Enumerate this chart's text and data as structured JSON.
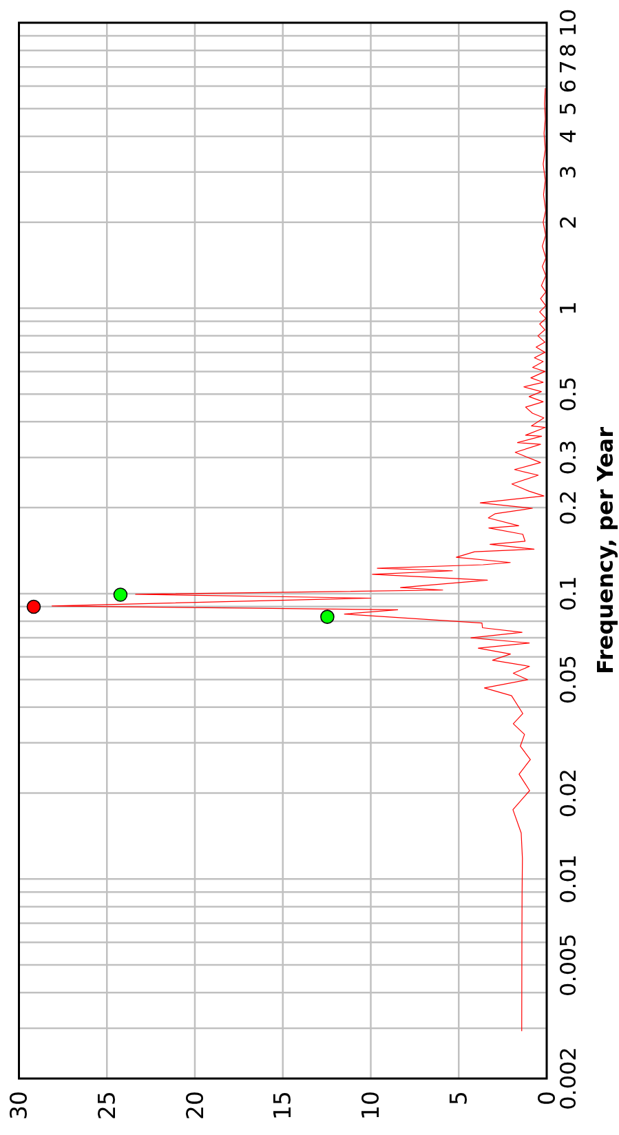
{
  "chart_data": {
    "type": "line",
    "ylabel": "Frequency, per Year",
    "log": "y",
    "grid": true,
    "ylim": [
      0.002,
      10
    ],
    "yticks": [
      0.002,
      {
        "value": 0.003,
        "label": null
      },
      {
        "value": 0.004,
        "label": null
      },
      0.005,
      {
        "value": 0.006,
        "label": null
      },
      {
        "value": 0.007,
        "label": null
      },
      {
        "value": 0.008,
        "label": null
      },
      {
        "value": 0.009,
        "label": null
      },
      0.01,
      0.02,
      {
        "value": 0.03,
        "label": null
      },
      {
        "value": 0.04,
        "label": null
      },
      0.05,
      {
        "value": 0.06,
        "label": null
      },
      {
        "value": 0.07,
        "label": null
      },
      {
        "value": 0.08,
        "label": null
      },
      {
        "value": 0.09,
        "label": null
      },
      0.1,
      0.2,
      0.3,
      {
        "value": 0.4,
        "label": null
      },
      0.5,
      {
        "value": 0.6,
        "label": null
      },
      {
        "value": 0.7,
        "label": null
      },
      {
        "value": 0.8,
        "label": null
      },
      {
        "value": 0.9,
        "label": null
      },
      1,
      2,
      3,
      4,
      5,
      6,
      7,
      8,
      {
        "value": 9,
        "label": null
      },
      10
    ],
    "xlim": [
      30,
      0
    ],
    "xticks": [
      30,
      25,
      20,
      15,
      10,
      5,
      0
    ],
    "series": [
      {
        "color": "#ff0000",
        "values": [
          0.00293,
          0.0059,
          0.0088,
          0.0118,
          0.0145,
          0.0175,
          0.0204,
          0.0233,
          0.0262,
          0.0292,
          0.0321,
          0.035,
          0.038,
          0.0439,
          0.0467,
          0.0499,
          0.0526,
          0.0556,
          0.0584,
          0.0614,
          0.0644,
          0.0671,
          0.07,
          0.0732,
          0.0759,
          0.0789,
          0.0848,
          0.0878,
          0.0905,
          0.0964,
          0.0994,
          0.1029,
          0.105,
          0.1114,
          0.1168,
          0.1202,
          0.1227,
          0.1262,
          0.1285,
          0.1341,
          0.1402,
          0.1431,
          0.1487,
          0.1526,
          0.1614,
          0.1697,
          0.1729,
          0.1841,
          0.1906,
          0.199,
          0.2079,
          0.2198,
          0.2285,
          0.2421,
          0.2598,
          0.272,
          0.2877,
          0.3126,
          0.3335,
          0.338,
          0.3558,
          0.3589,
          0.3819,
          0.3868,
          0.4126,
          0.4283,
          0.45,
          0.47,
          0.49,
          0.51,
          0.53,
          0.55,
          0.57,
          0.6,
          0.62,
          0.65,
          0.67,
          0.7,
          0.73,
          0.76,
          0.8,
          0.84,
          0.88,
          0.92,
          0.97,
          1.02,
          1.08,
          1.14,
          1.2,
          1.3,
          1.4,
          1.5,
          1.65,
          1.8,
          2.0,
          2.2,
          2.5,
          2.8,
          3.2,
          3.6,
          4.1,
          4.6,
          5.2,
          5.9
        ],
        "x": [
          1.42,
          1.41,
          1.4,
          1.38,
          1.45,
          1.92,
          0.97,
          1.57,
          0.93,
          1.5,
          1.26,
          1.9,
          1.36,
          2.0,
          3.54,
          1.08,
          1.9,
          0.98,
          3.08,
          2.06,
          3.89,
          0.99,
          4.31,
          1.4,
          3.65,
          3.68,
          11.5,
          8.47,
          28.12,
          10.0,
          23.37,
          5.91,
          8.31,
          3.37,
          9.91,
          5.36,
          9.63,
          3.62,
          2.07,
          5.14,
          4.1,
          0.72,
          3.22,
          1.23,
          1.36,
          3.29,
          1.59,
          3.32,
          2.92,
          0.81,
          3.78,
          0.16,
          1.01,
          1.98,
          0.48,
          1.83,
          0.35,
          1.79,
          0.35,
          1.66,
          0.29,
          1.2,
          0.09,
          0.87,
          0.16,
          0.81,
          1.2,
          0.2,
          1.0,
          0.3,
          1.3,
          0.2,
          0.9,
          0.1,
          0.8,
          0.2,
          0.7,
          0.1,
          0.6,
          0.1,
          0.5,
          0.1,
          0.4,
          0.05,
          0.4,
          0.05,
          0.35,
          0.05,
          0.3,
          0.05,
          0.25,
          0.05,
          0.25,
          0.06,
          0.2,
          0.06,
          0.18,
          0.08,
          0.2,
          0.08,
          0.15,
          0.08,
          0.12,
          0.08
        ]
      },
      {
        "type": "scatter",
        "color": "#ff0000",
        "marker": "circle",
        "values": [
          0.0899
        ],
        "x": [
          29.16
        ]
      },
      {
        "type": "scatter",
        "color": "#00ff00",
        "marker": "circle",
        "values": [
          0.0991,
          0.0829
        ],
        "x": [
          24.23,
          12.47
        ]
      }
    ]
  }
}
